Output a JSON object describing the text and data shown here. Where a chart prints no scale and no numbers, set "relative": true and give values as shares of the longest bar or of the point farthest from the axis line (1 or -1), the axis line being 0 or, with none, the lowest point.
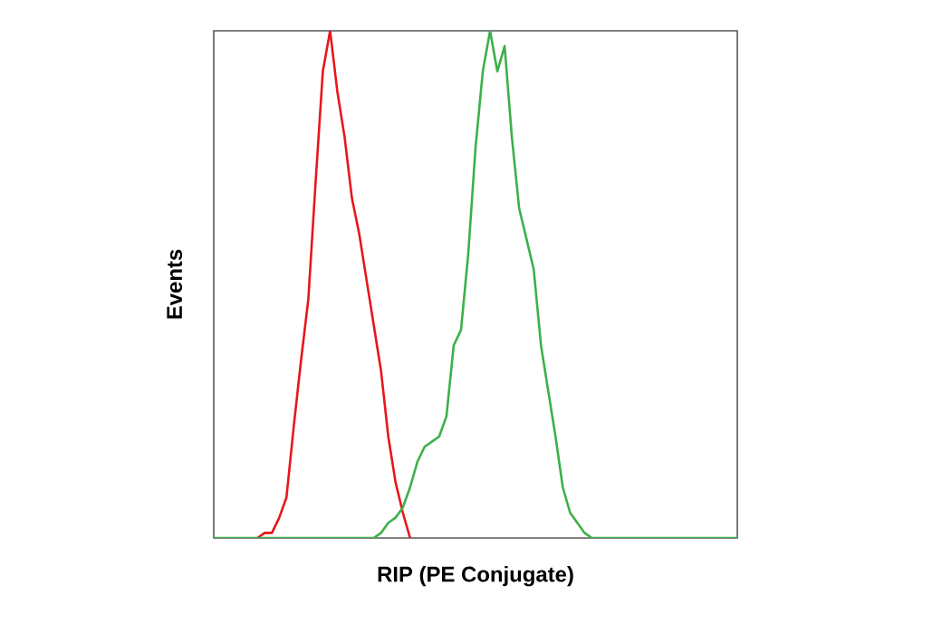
{
  "chart_data": {
    "type": "line",
    "relative": true,
    "xlabel": "RIP (PE Conjugate)",
    "ylabel": "Events",
    "categories": [
      null,
      null,
      null,
      null,
      null,
      null,
      null,
      null,
      null,
      null,
      null,
      null,
      null,
      null,
      null,
      null,
      null,
      null,
      null,
      null,
      null,
      null,
      null,
      null,
      null,
      null,
      null,
      null,
      null,
      null,
      null,
      null,
      null,
      null,
      null,
      null,
      null,
      null,
      null,
      null,
      null,
      null,
      null,
      null,
      null,
      null,
      null,
      null,
      null,
      null,
      null,
      null,
      null,
      null,
      null,
      null,
      null,
      null,
      null,
      null,
      null,
      null,
      null,
      null,
      null,
      null,
      null,
      null,
      null,
      null,
      null,
      null,
      null
    ],
    "series": [
      {
        "color": "#e8161b",
        "values": [
          null,
          null,
          null,
          null,
          null,
          null,
          0,
          0.01,
          0.01,
          0.04,
          0.08,
          0.22,
          0.35,
          0.47,
          0.7,
          0.92,
          1.0,
          0.88,
          0.79,
          0.67,
          0.6,
          0.51,
          0.42,
          0.33,
          0.2,
          0.11,
          0.05,
          0,
          null,
          null,
          null,
          null,
          null,
          null,
          null,
          null,
          null,
          null,
          null,
          null,
          null,
          null,
          null,
          null,
          null,
          null,
          null,
          null,
          null,
          null,
          null,
          null,
          null,
          null,
          null,
          null,
          null,
          null,
          null,
          null,
          null,
          null,
          null,
          null,
          null,
          null,
          null,
          null,
          null,
          null,
          null,
          null,
          null
        ]
      },
      {
        "color": "#3cb04a",
        "values": [
          0,
          0,
          0,
          0,
          0,
          0,
          0,
          0,
          0,
          0,
          0,
          0,
          0,
          0,
          0,
          0,
          0,
          0,
          0,
          0,
          0,
          0,
          0,
          0.01,
          0.03,
          0.04,
          0.06,
          0.1,
          0.15,
          0.18,
          0.19,
          0.2,
          0.24,
          0.38,
          0.41,
          0.56,
          0.77,
          0.92,
          1.0,
          0.92,
          0.97,
          0.79,
          0.65,
          0.59,
          0.53,
          0.38,
          0.29,
          0.2,
          0.1,
          0.05,
          0.03,
          0.01,
          0,
          0,
          0,
          0,
          0,
          0,
          0,
          0,
          0,
          0,
          0,
          0,
          0,
          0,
          0,
          0,
          0,
          0,
          0,
          0,
          0
        ]
      }
    ]
  }
}
